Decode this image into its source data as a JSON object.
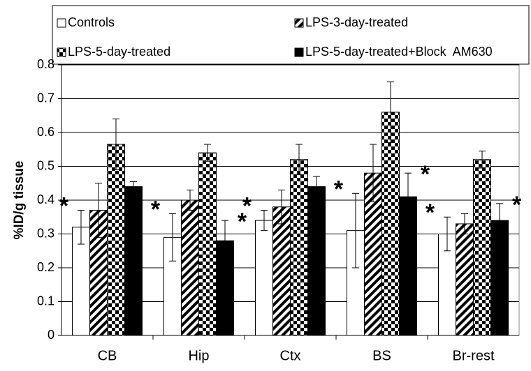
{
  "chart_data": {
    "type": "bar",
    "ylabel": "%ID/g tissue",
    "categories": [
      "CB",
      "Hip",
      "Ctx",
      "BS",
      "Br-rest"
    ],
    "series": [
      {
        "name": "Controls",
        "color": "#ffffff",
        "pattern": "none",
        "values": [
          0.32,
          0.29,
          0.34,
          0.31,
          0.3
        ],
        "errors": [
          0.05,
          0.07,
          0.03,
          0.11,
          0.05
        ]
      },
      {
        "name": "LPS-3-day-treated",
        "color": "#000000",
        "pattern": "diagonal",
        "values": [
          0.37,
          0.4,
          0.38,
          0.48,
          0.33
        ],
        "errors": [
          0.08,
          0.03,
          0.05,
          0.085,
          0.03
        ]
      },
      {
        "name": "LPS-5-day-treated",
        "color": "#000000",
        "pattern": "checker",
        "values": [
          0.565,
          0.54,
          0.52,
          0.66,
          0.52
        ],
        "errors": [
          0.075,
          0.025,
          0.045,
          0.09,
          0.025
        ]
      },
      {
        "name": "LPS-5-day-treated+Block  AM630",
        "color": "#000000",
        "pattern": "solid",
        "values": [
          0.44,
          0.28,
          0.44,
          0.41,
          0.34
        ],
        "errors": [
          0.015,
          0.06,
          0.03,
          0.07,
          0.05
        ]
      }
    ],
    "annotations": [
      {
        "text": "*",
        "category": 0,
        "series": 0
      },
      {
        "text": "*",
        "category": 1,
        "series": 0
      },
      {
        "text": "*",
        "category": 1,
        "series": 3
      },
      {
        "text": "*",
        "category": 2,
        "series": 0
      },
      {
        "text": "*",
        "category": 3,
        "series": 0
      },
      {
        "text": "*",
        "category": 3,
        "series": 3
      },
      {
        "text": "*",
        "category": 4,
        "series": 0
      },
      {
        "text": "*",
        "category": 4,
        "series": 3
      }
    ],
    "ylim": [
      0,
      0.8
    ],
    "yticks": [
      0,
      0.1,
      0.2,
      0.3,
      0.4,
      0.5,
      0.6,
      0.7,
      0.8
    ],
    "grid": true
  }
}
